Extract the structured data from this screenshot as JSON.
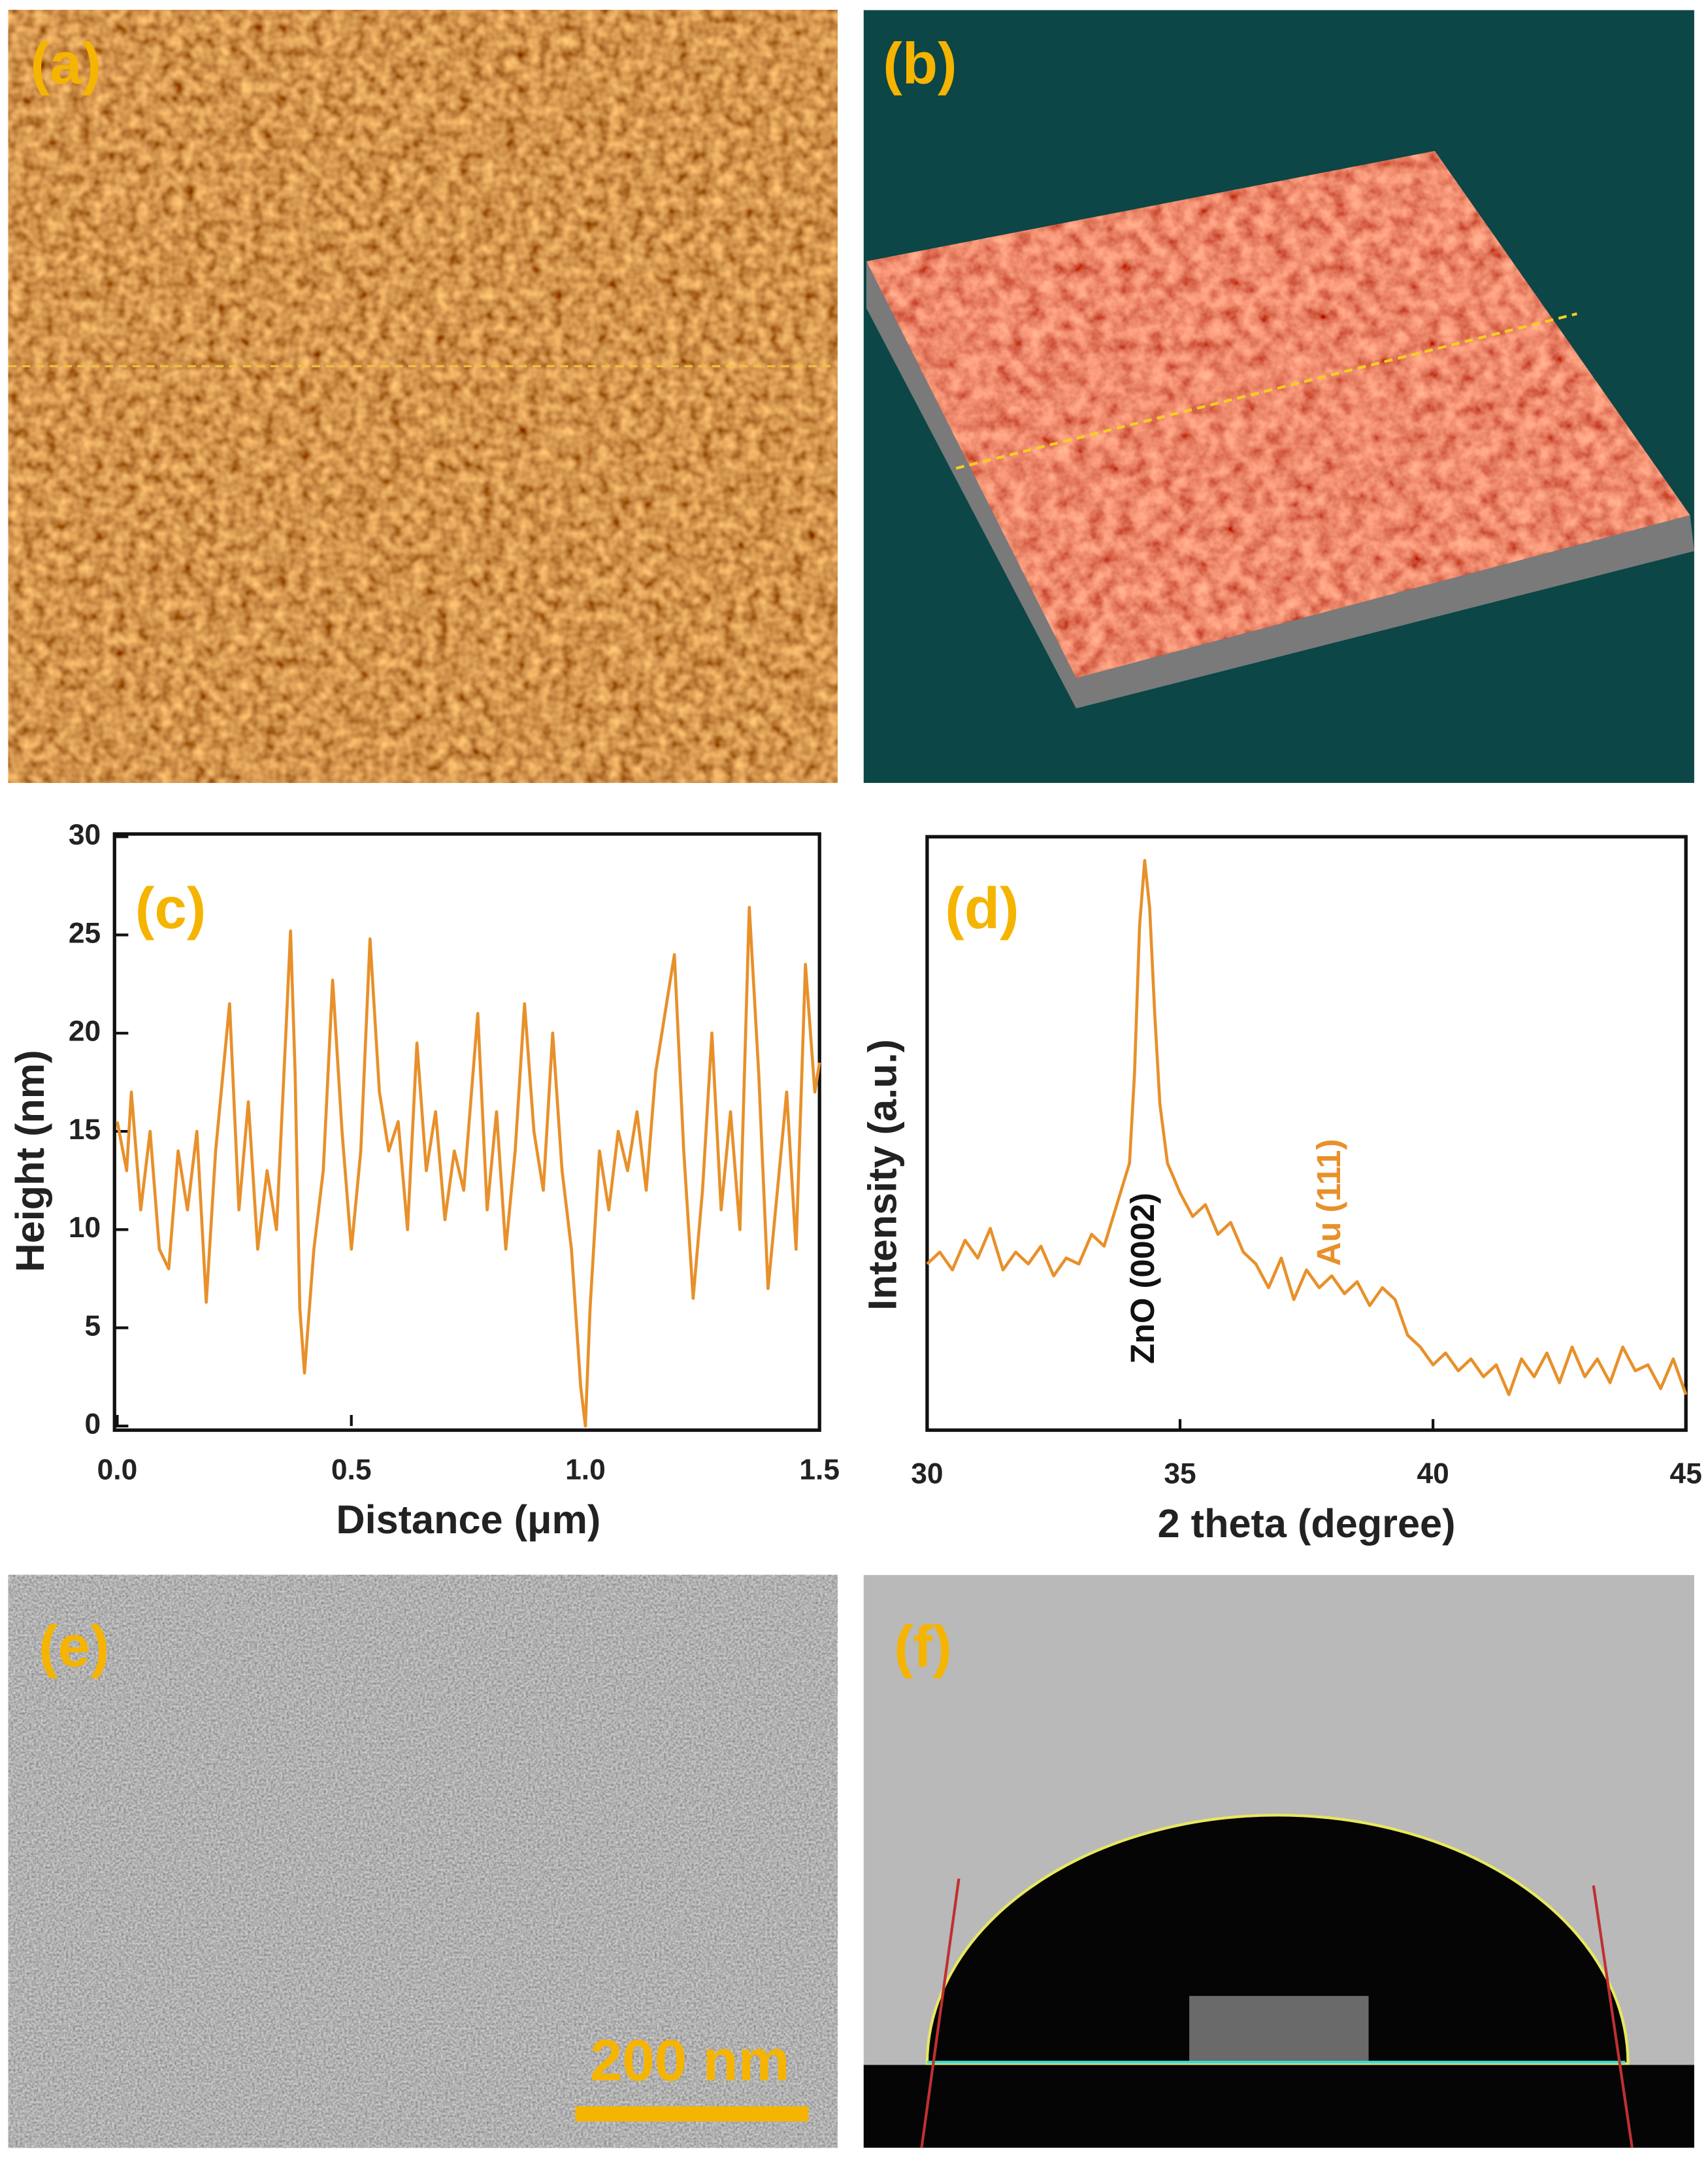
{
  "panel_labels": [
    "(a)",
    "(b)",
    "(c)",
    "(d)",
    "(e)",
    "(f)"
  ],
  "scale_bar": "200 nm",
  "chart_data": [
    {
      "type": "line",
      "xlabel": "Distance (μm)",
      "ylabel": "Height (nm)",
      "color": "#e8902a",
      "xlim": [
        0,
        1.5
      ],
      "ylim": [
        0,
        30
      ],
      "xticks": [
        {
          "value": 0,
          "label": "0.0"
        },
        0.5,
        {
          "value": 1,
          "label": "1.0"
        },
        1.5
      ],
      "yticks": [
        0,
        5,
        10,
        15,
        20,
        25,
        30
      ],
      "x": [
        0,
        0.02,
        0.03,
        0.05,
        0.07,
        0.09,
        0.11,
        0.13,
        0.15,
        0.17,
        0.19,
        0.21,
        0.24,
        0.26,
        0.28,
        0.3,
        0.32,
        0.34,
        0.36,
        0.37,
        0.38,
        0.39,
        0.4,
        0.42,
        0.44,
        0.46,
        0.48,
        0.5,
        0.52,
        0.54,
        0.56,
        0.58,
        0.6,
        0.62,
        0.64,
        0.66,
        0.68,
        0.7,
        0.72,
        0.74,
        0.77,
        0.79,
        0.81,
        0.83,
        0.85,
        0.87,
        0.89,
        0.91,
        0.93,
        0.95,
        0.97,
        0.99,
        1.0,
        1.01,
        1.03,
        1.05,
        1.07,
        1.09,
        1.11,
        1.13,
        1.15,
        1.17,
        1.19,
        1.21,
        1.23,
        1.25,
        1.27,
        1.29,
        1.31,
        1.33,
        1.35,
        1.37,
        1.39,
        1.41,
        1.43,
        1.45,
        1.47,
        1.49,
        1.5
      ],
      "values": [
        15.5,
        13,
        17,
        11,
        15,
        9,
        8,
        14,
        11,
        15,
        6.3,
        14,
        21.5,
        11,
        16.5,
        9,
        13,
        10,
        20,
        25.2,
        18,
        6,
        2.7,
        9,
        13,
        22.7,
        15,
        9,
        14,
        24.8,
        17,
        14,
        15.5,
        10,
        19.5,
        13,
        16,
        10.5,
        14,
        12,
        21,
        11,
        16,
        9,
        14,
        21.5,
        15,
        12,
        20,
        13,
        9,
        2,
        0,
        6,
        14,
        11,
        15,
        13,
        16,
        12,
        18,
        21,
        24,
        14,
        6.5,
        12,
        20,
        11,
        16,
        10,
        26.4,
        18,
        7,
        12,
        17,
        9,
        23.5,
        17,
        18.5
      ]
    },
    {
      "type": "line",
      "xlabel": "2 theta (degree)",
      "ylabel": "Intensity (a.u.)",
      "color": "#e8902a",
      "xlim": [
        30,
        45
      ],
      "ylim": [
        0,
        100
      ],
      "xticks": [
        30,
        35,
        40,
        45
      ],
      "annotations": [
        {
          "text": "ZnO (0002)",
          "color": "#111111"
        },
        {
          "text": "Au (111)",
          "color": "#e8902a"
        }
      ],
      "x": [
        30,
        30.25,
        30.5,
        30.75,
        31,
        31.25,
        31.5,
        31.75,
        32,
        32.25,
        32.5,
        32.75,
        33,
        33.25,
        33.5,
        33.75,
        34,
        34.1,
        34.2,
        34.3,
        34.4,
        34.5,
        34.6,
        34.75,
        35,
        35.25,
        35.5,
        35.75,
        36,
        36.25,
        36.5,
        36.75,
        37,
        37.25,
        37.5,
        37.75,
        38,
        38.25,
        38.5,
        38.75,
        39,
        39.25,
        39.5,
        39.75,
        40,
        40.25,
        40.5,
        40.75,
        41,
        41.25,
        41.5,
        41.75,
        42,
        42.25,
        42.5,
        42.75,
        43,
        43.25,
        43.5,
        43.75,
        44,
        44.25,
        44.5,
        44.75,
        45
      ],
      "values": [
        28,
        30,
        27,
        32,
        29,
        34,
        27,
        30,
        28,
        31,
        26,
        29,
        28,
        33,
        31,
        38,
        45,
        60,
        85,
        96,
        88,
        70,
        55,
        45,
        40,
        36,
        38,
        33,
        35,
        30,
        28,
        24,
        29,
        22,
        27,
        24,
        26,
        23,
        25,
        21,
        24,
        22,
        16,
        14,
        11,
        13,
        10,
        12,
        9,
        11,
        6,
        12,
        9,
        13,
        8,
        14,
        9,
        12,
        8,
        14,
        10,
        11,
        7,
        12,
        6
      ]
    }
  ]
}
